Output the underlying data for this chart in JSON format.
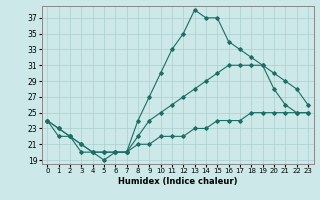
{
  "xlabel": "Humidex (Indice chaleur)",
  "ylabel": "",
  "xlim": [
    -0.5,
    23.5
  ],
  "ylim": [
    18.5,
    38.5
  ],
  "yticks": [
    19,
    21,
    23,
    25,
    27,
    29,
    31,
    33,
    35,
    37
  ],
  "xticks": [
    0,
    1,
    2,
    3,
    4,
    5,
    6,
    7,
    8,
    9,
    10,
    11,
    12,
    13,
    14,
    15,
    16,
    17,
    18,
    19,
    20,
    21,
    22,
    23
  ],
  "bg_color": "#cce8e8",
  "line_color": "#1a6e64",
  "grid_color": "#aacfcf",
  "line1_x": [
    0,
    1,
    2,
    3,
    4,
    5,
    6,
    7,
    8,
    9,
    10,
    11,
    12,
    13,
    14,
    15,
    16,
    17,
    18,
    19,
    20,
    21,
    22,
    23
  ],
  "line1_y": [
    24,
    23,
    22,
    20,
    20,
    19,
    20,
    20,
    24,
    27,
    30,
    33,
    35,
    38,
    37,
    37,
    34,
    33,
    32,
    31,
    28,
    26,
    25,
    25
  ],
  "line2_x": [
    0,
    1,
    2,
    3,
    4,
    5,
    6,
    7,
    8,
    9,
    10,
    11,
    12,
    13,
    14,
    15,
    16,
    17,
    18,
    19,
    20,
    21,
    22,
    23
  ],
  "line2_y": [
    24,
    23,
    22,
    21,
    20,
    20,
    20,
    20,
    22,
    24,
    25,
    26,
    27,
    28,
    29,
    30,
    31,
    31,
    31,
    31,
    30,
    29,
    28,
    26
  ],
  "line3_x": [
    0,
    1,
    2,
    3,
    4,
    5,
    6,
    7,
    8,
    9,
    10,
    11,
    12,
    13,
    14,
    15,
    16,
    17,
    18,
    19,
    20,
    21,
    22,
    23
  ],
  "line3_y": [
    24,
    22,
    22,
    21,
    20,
    20,
    20,
    20,
    21,
    21,
    22,
    22,
    22,
    23,
    23,
    24,
    24,
    24,
    25,
    25,
    25,
    25,
    25,
    25
  ]
}
